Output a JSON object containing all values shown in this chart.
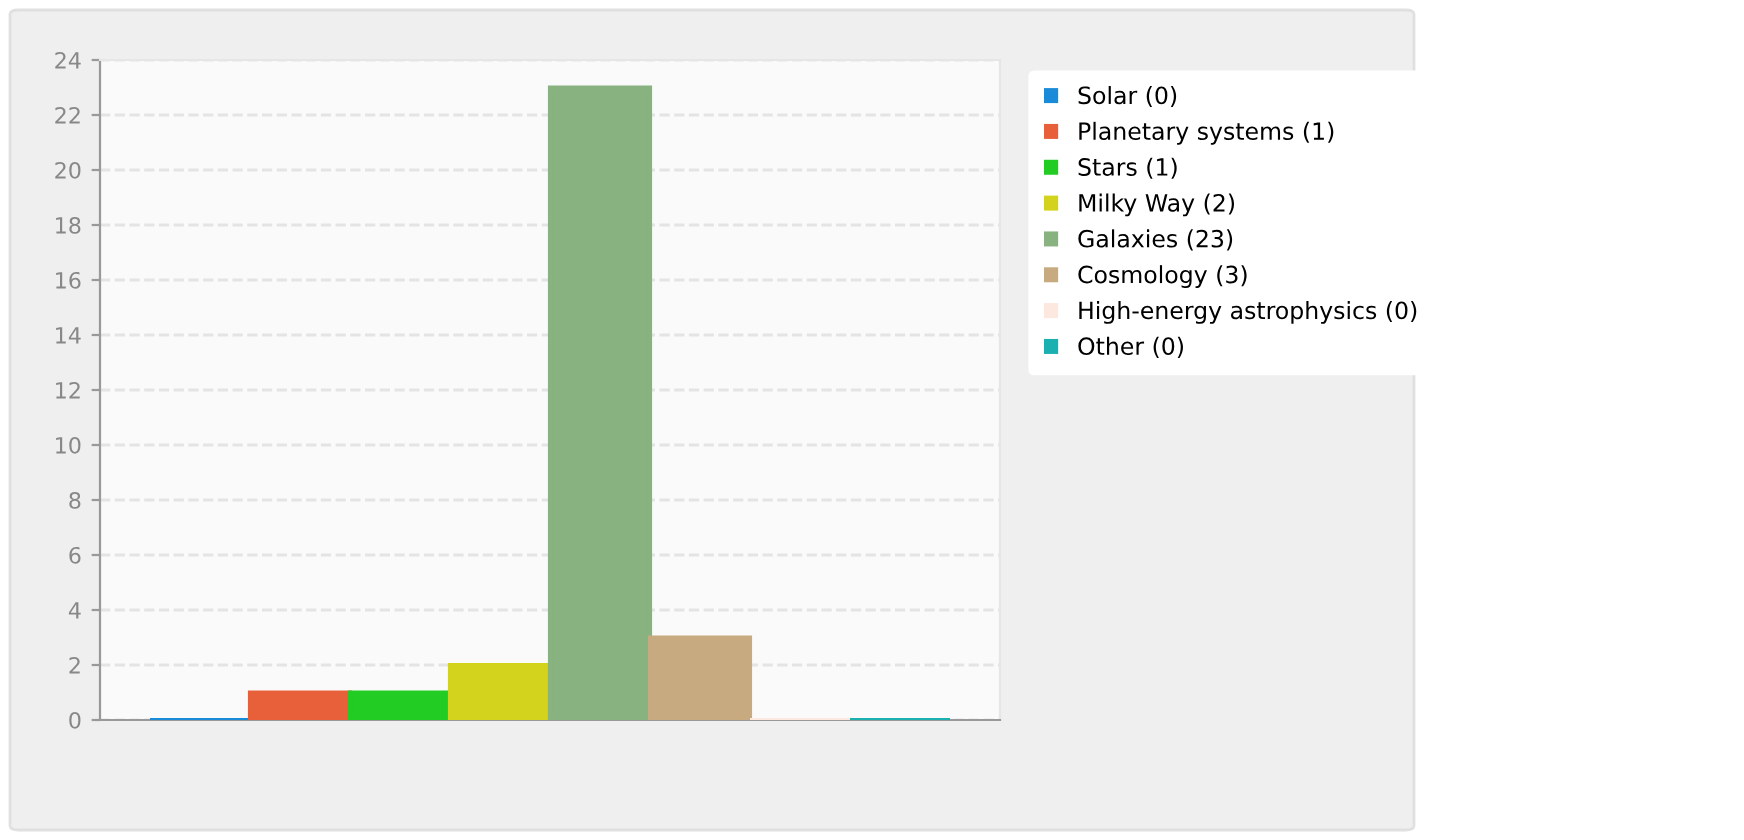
{
  "chart_data": {
    "type": "bar",
    "categories": [
      null
    ],
    "series": [
      {
        "name": "Solar (0)",
        "color": "#1a8bd8",
        "values": [
          0
        ]
      },
      {
        "name": "Planetary systems (1)",
        "color": "#e8603a",
        "values": [
          1
        ]
      },
      {
        "name": "Stars (1)",
        "color": "#22cc22",
        "values": [
          1
        ]
      },
      {
        "name": "Milky Way (2)",
        "color": "#d3d31e",
        "values": [
          2
        ]
      },
      {
        "name": "Galaxies (23)",
        "color": "#88b27f",
        "values": [
          23
        ]
      },
      {
        "name": "Cosmology (3)",
        "color": "#c8aa80",
        "values": [
          3
        ]
      },
      {
        "name": "High-energy astrophysics (0)",
        "color": "#fce8df",
        "values": [
          0
        ]
      },
      {
        "name": "Other (0)",
        "color": "#1ab0b0",
        "values": [
          0
        ]
      }
    ],
    "ylim": [
      0,
      24
    ],
    "yticks": [
      0,
      2,
      4,
      6,
      8,
      10,
      12,
      14,
      16,
      18,
      20,
      22,
      24
    ],
    "grid": "y",
    "legend": "right"
  }
}
